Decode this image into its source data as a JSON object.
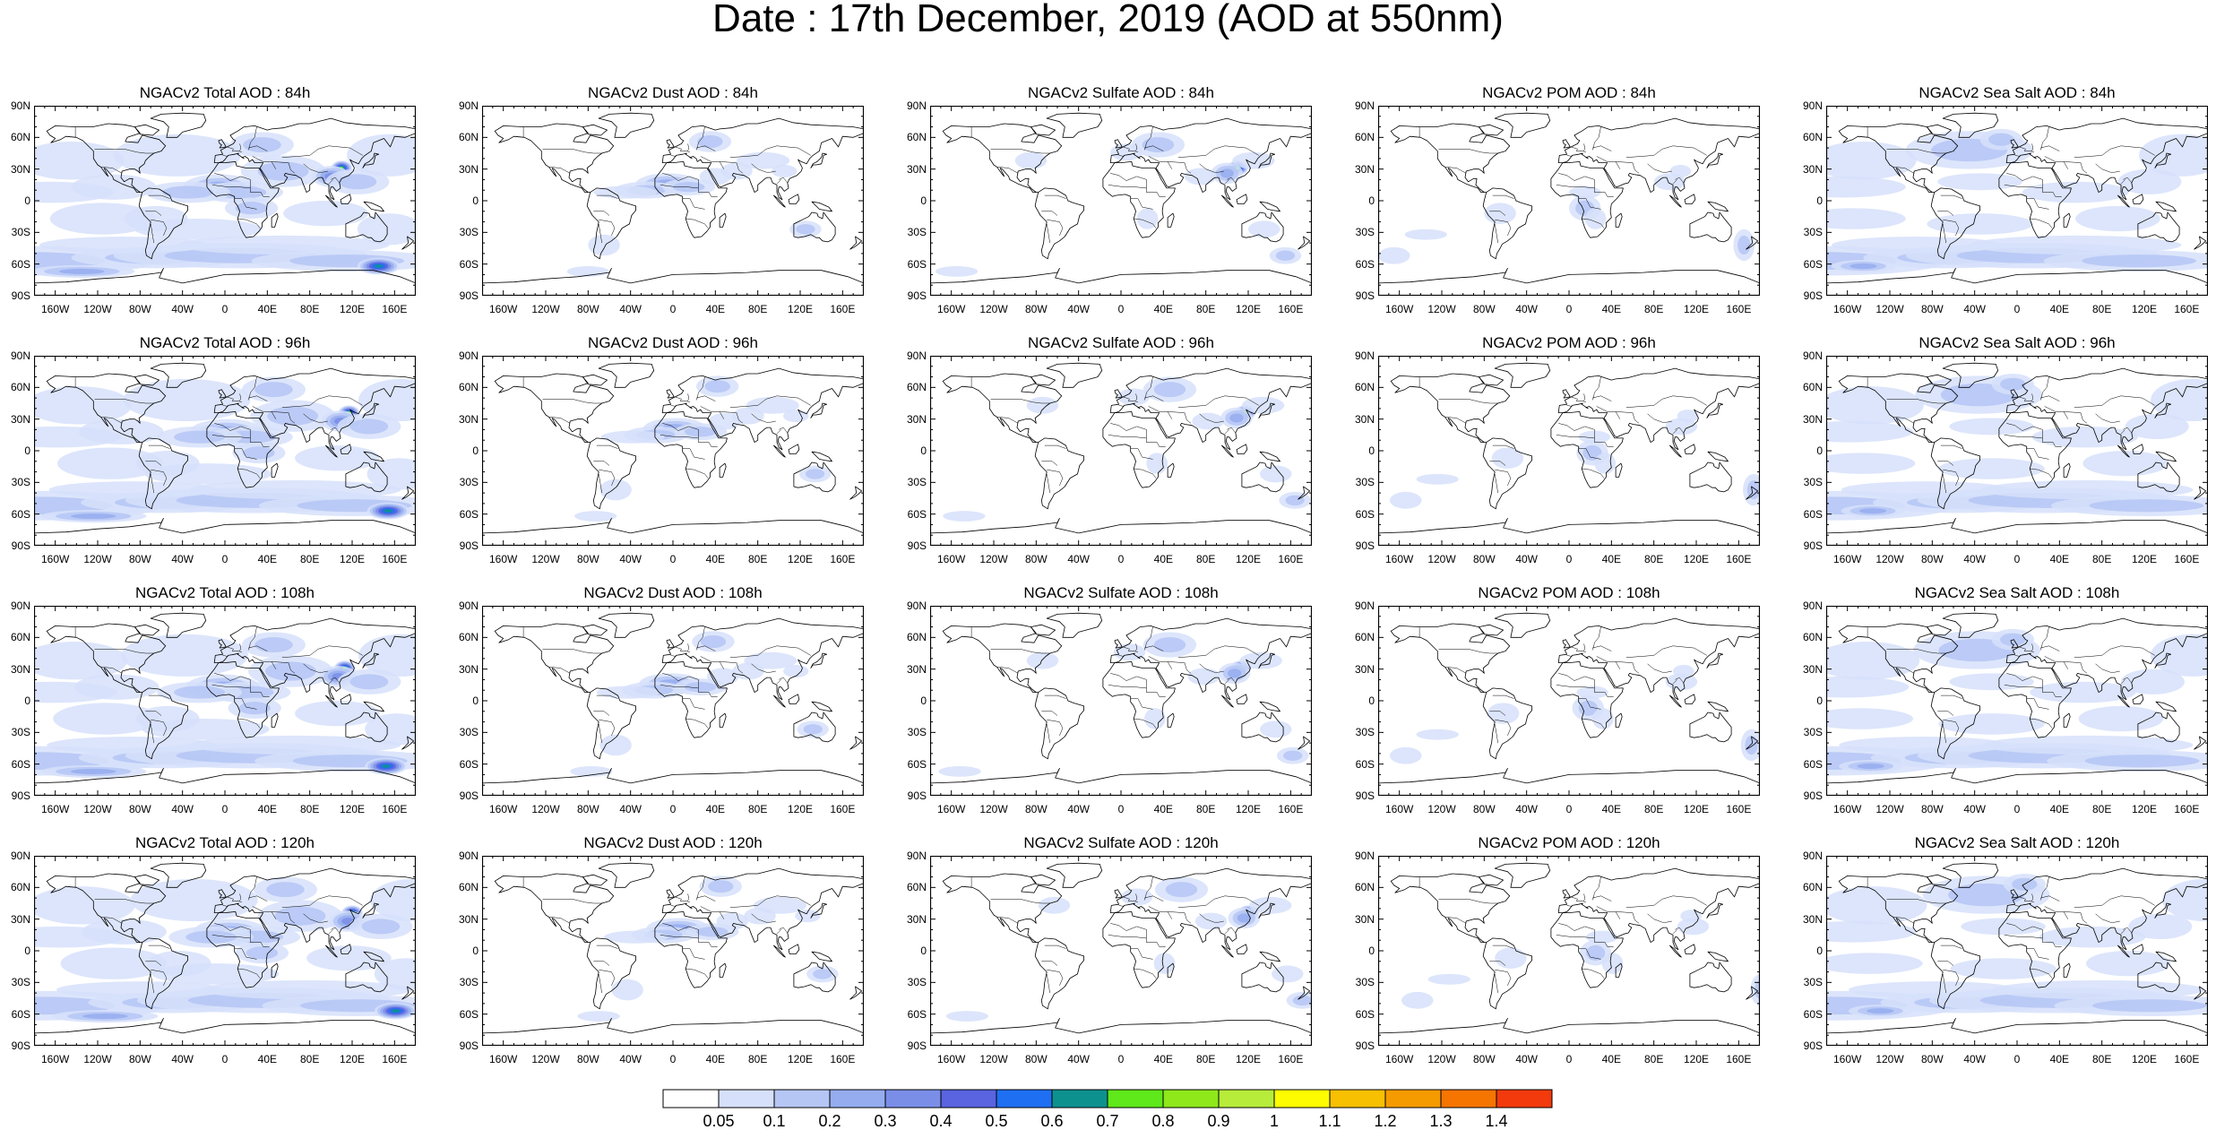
{
  "title": "Date : 17th December, 2019 (AOD at 550nm)",
  "lat_labels": [
    "90N",
    "60N",
    "30N",
    "0",
    "30S",
    "60S",
    "90S"
  ],
  "lon_labels": [
    "160W",
    "120W",
    "80W",
    "40W",
    "0",
    "40E",
    "80E",
    "120E",
    "160E"
  ],
  "rows": [
    {
      "hour": "84h",
      "panels": [
        {
          "id": "total",
          "title": "NGACv2 Total AOD : 84h"
        },
        {
          "id": "dust",
          "title": "NGACv2 Dust AOD : 84h"
        },
        {
          "id": "sulfate",
          "title": "NGACv2 Sulfate AOD : 84h"
        },
        {
          "id": "pom",
          "title": "NGACv2 POM AOD : 84h"
        },
        {
          "id": "seasalt",
          "title": "NGACv2 Sea Salt AOD : 84h"
        }
      ]
    },
    {
      "hour": "96h",
      "panels": [
        {
          "id": "total",
          "title": "NGACv2 Total AOD : 96h"
        },
        {
          "id": "dust",
          "title": "NGACv2 Dust AOD : 96h"
        },
        {
          "id": "sulfate",
          "title": "NGACv2 Sulfate AOD : 96h"
        },
        {
          "id": "pom",
          "title": "NGACv2 POM AOD : 96h"
        },
        {
          "id": "seasalt",
          "title": "NGACv2 Sea Salt AOD : 96h"
        }
      ]
    },
    {
      "hour": "108h",
      "panels": [
        {
          "id": "total",
          "title": "NGACv2 Total AOD : 108h"
        },
        {
          "id": "dust",
          "title": "NGACv2 Dust AOD : 108h"
        },
        {
          "id": "sulfate",
          "title": "NGACv2 Sulfate AOD : 108h"
        },
        {
          "id": "pom",
          "title": "NGACv2 POM AOD : 108h"
        },
        {
          "id": "seasalt",
          "title": "NGACv2 Sea Salt AOD : 108h"
        }
      ]
    },
    {
      "hour": "120h",
      "panels": [
        {
          "id": "total",
          "title": "NGACv2 Total AOD : 120h"
        },
        {
          "id": "dust",
          "title": "NGACv2 Dust AOD : 120h"
        },
        {
          "id": "sulfate",
          "title": "NGACv2 Sulfate AOD : 120h"
        },
        {
          "id": "pom",
          "title": "NGACv2 POM AOD : 120h"
        },
        {
          "id": "seasalt",
          "title": "NGACv2 Sea Salt  AOD : 120h"
        }
      ]
    }
  ],
  "colorbar": {
    "labels": [
      "0.05",
      "0.1",
      "0.2",
      "0.3",
      "0.4",
      "0.5",
      "0.6",
      "0.7",
      "0.8",
      "0.9",
      "1",
      "1.1",
      "1.2",
      "1.3",
      "1.4"
    ],
    "colors": [
      "#ffffff",
      "#d6e0fa",
      "#b5c6f5",
      "#95adef",
      "#7a8ee8",
      "#5a63e0",
      "#1f6ff2",
      "#0d918f",
      "#5fe81a",
      "#8ee81a",
      "#b7ec3a",
      "#fdfc00",
      "#f7c000",
      "#f59b00",
      "#f57500",
      "#f23a0c"
    ]
  }
}
